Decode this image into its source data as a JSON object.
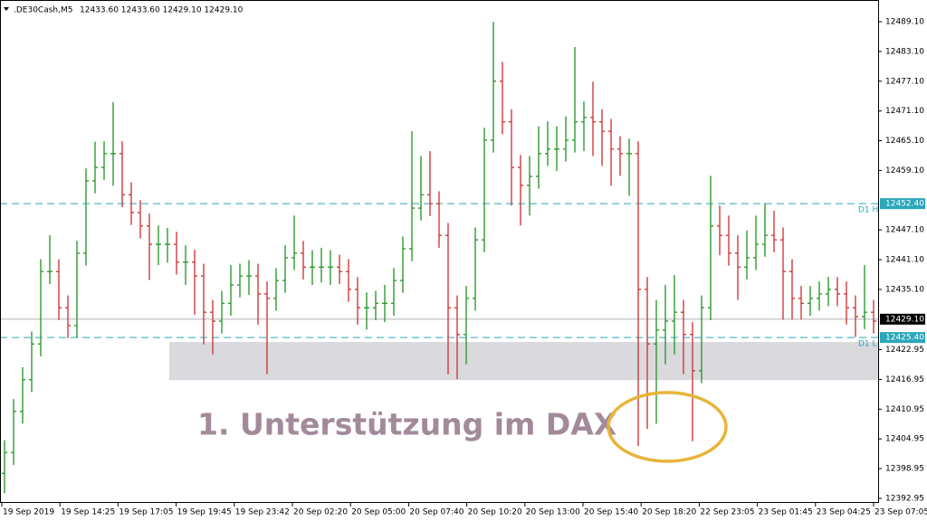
{
  "chart_data": {
    "type": "ohlc",
    "header": {
      "symbol": ".DE30Cash,M5",
      "quote": "12433.60 12433.60 12429.10 12429.10"
    },
    "annotation": "1. Unterstützung im DAX",
    "up_color": "#2f9a2f",
    "down_color": "#d03a3a",
    "ylim": [
      12392.95,
      12489.1
    ],
    "yticks": [
      {
        "value": 12489.1,
        "label": "12489.10"
      },
      {
        "value": 12483.1,
        "label": "12483.10"
      },
      {
        "value": 12477.1,
        "label": "12477.10"
      },
      {
        "value": 12471.1,
        "label": "12471.10"
      },
      {
        "value": 12465.1,
        "label": "12465.10"
      },
      {
        "value": 12459.1,
        "label": "12459.10"
      },
      {
        "value": 12447.1,
        "label": "12447.10"
      },
      {
        "value": 12441.1,
        "label": "12441.10"
      },
      {
        "value": 12435.1,
        "label": "12435.10"
      },
      {
        "value": 12422.95,
        "label": "12422.95"
      },
      {
        "value": 12416.95,
        "label": "12416.95"
      },
      {
        "value": 12410.95,
        "label": "12410.95"
      },
      {
        "value": 12404.95,
        "label": "12404.95"
      },
      {
        "value": 12398.95,
        "label": "12398.95"
      },
      {
        "value": 12392.95,
        "label": "12392.95"
      }
    ],
    "x_labels": [
      "19 Sep 2019",
      "19 Sep 14:25",
      "19 Sep 17:05",
      "19 Sep 19:45",
      "19 Sep 23:42",
      "20 Sep 02:20",
      "20 Sep 05:00",
      "20 Sep 07:40",
      "20 Sep 10:20",
      "20 Sep 13:00",
      "20 Sep 15:40",
      "20 Sep 18:20",
      "22 Sep 23:05",
      "23 Sep 01:45",
      "23 Sep 04:25",
      "23 Sep 07:05"
    ],
    "zone": {
      "from": 12416.8,
      "to": 12424.5,
      "color": "#d9d9de"
    },
    "levels": [
      {
        "name": "D1 H",
        "value": 12452.4,
        "label": "12452.40",
        "color": "#2aa7b8"
      },
      {
        "name": "D1 L",
        "value": 12425.4,
        "label": "12425.40",
        "color": "#2aa7b8"
      }
    ],
    "current": {
      "value": 12429.1,
      "label": "12429.10",
      "color": "#b0b0b0"
    },
    "ohlc": [
      [
        12398.0,
        12404.7,
        12394.0,
        12402.2
      ],
      [
        12402.2,
        12413.0,
        12399.7,
        12410.5
      ],
      [
        12410.5,
        12419.4,
        12408.0,
        12416.9
      ],
      [
        12416.9,
        12426.6,
        12414.4,
        12424.1
      ],
      [
        12424.1,
        12441.2,
        12421.6,
        12438.7
      ],
      [
        12438.7,
        12446.0,
        12436.2,
        12438.7
      ],
      [
        12438.7,
        12441.2,
        12428.9,
        12431.4
      ],
      [
        12431.4,
        12433.9,
        12425.3,
        12427.8
      ],
      [
        12427.8,
        12444.9,
        12425.3,
        12442.4
      ],
      [
        12442.4,
        12459.5,
        12439.9,
        12457.0
      ],
      [
        12457.0,
        12464.9,
        12454.5,
        12459.7
      ],
      [
        12459.7,
        12465.0,
        12457.2,
        12462.5
      ],
      [
        12462.5,
        12472.9,
        12456.0,
        12462.5
      ],
      [
        12462.5,
        12465.0,
        12451.7,
        12454.2
      ],
      [
        12454.2,
        12456.7,
        12448.1,
        12450.6
      ],
      [
        12450.6,
        12453.1,
        12445.4,
        12447.9
      ],
      [
        12447.9,
        12450.4,
        12437.0,
        12444.2
      ],
      [
        12444.2,
        12448.0,
        12440.0,
        12444.2
      ],
      [
        12444.2,
        12447.5,
        12440.5,
        12444.2
      ],
      [
        12444.2,
        12446.7,
        12438.1,
        12440.6
      ],
      [
        12440.6,
        12444.0,
        12436.0,
        12440.6
      ],
      [
        12440.6,
        12443.1,
        12430.0,
        12437.8
      ],
      [
        12437.8,
        12440.3,
        12424.0,
        12430.5
      ],
      [
        12430.5,
        12433.0,
        12422.0,
        12428.7
      ],
      [
        12428.7,
        12434.8,
        12426.2,
        12432.3
      ],
      [
        12432.3,
        12440.0,
        12429.8,
        12436.0
      ],
      [
        12436.0,
        12440.3,
        12433.5,
        12437.8
      ],
      [
        12437.8,
        12441.0,
        12434.0,
        12437.8
      ],
      [
        12437.8,
        12440.3,
        12428.0,
        12434.2
      ],
      [
        12434.2,
        12436.7,
        12418.0,
        12433.3
      ],
      [
        12433.3,
        12439.4,
        12430.8,
        12436.9
      ],
      [
        12436.9,
        12444.0,
        12434.4,
        12441.5
      ],
      [
        12441.5,
        12450.0,
        12439.0,
        12442.4
      ],
      [
        12442.4,
        12444.9,
        12437.1,
        12439.6
      ],
      [
        12439.6,
        12443.0,
        12436.0,
        12439.6
      ],
      [
        12439.6,
        12443.5,
        12436.5,
        12439.6
      ],
      [
        12439.6,
        12443.0,
        12436.0,
        12439.6
      ],
      [
        12439.6,
        12442.1,
        12436.2,
        12438.7
      ],
      [
        12438.7,
        12441.2,
        12432.6,
        12435.1
      ],
      [
        12435.1,
        12437.6,
        12428.0,
        12431.4
      ],
      [
        12431.4,
        12434.5,
        12427.0,
        12431.4
      ],
      [
        12431.4,
        12434.8,
        12428.9,
        12432.3
      ],
      [
        12432.3,
        12436.0,
        12428.5,
        12432.3
      ],
      [
        12432.3,
        12439.4,
        12429.8,
        12436.9
      ],
      [
        12436.9,
        12445.8,
        12434.4,
        12443.3
      ],
      [
        12443.3,
        12467.0,
        12440.8,
        12451.5
      ],
      [
        12451.5,
        12462.0,
        12449.0,
        12454.2
      ],
      [
        12454.2,
        12463.0,
        12449.9,
        12452.4
      ],
      [
        12452.4,
        12454.9,
        12443.5,
        12446.0
      ],
      [
        12446.0,
        12448.5,
        12418.0,
        12431.4
      ],
      [
        12431.4,
        12433.9,
        12417.0,
        12426.0
      ],
      [
        12426.0,
        12435.8,
        12420.0,
        12433.3
      ],
      [
        12433.3,
        12447.6,
        12430.8,
        12445.1
      ],
      [
        12445.1,
        12467.7,
        12442.6,
        12465.2
      ],
      [
        12465.2,
        12489.1,
        12462.7,
        12477.1
      ],
      [
        12477.1,
        12481.0,
        12466.4,
        12468.9
      ],
      [
        12468.9,
        12471.4,
        12452.0,
        12459.7
      ],
      [
        12459.7,
        12462.2,
        12448.0,
        12456.1
      ],
      [
        12456.1,
        12462.0,
        12450.0,
        12457.9
      ],
      [
        12457.9,
        12468.0,
        12455.4,
        12462.5
      ],
      [
        12462.5,
        12469.0,
        12460.0,
        12463.4
      ],
      [
        12463.4,
        12468.0,
        12459.0,
        12463.4
      ],
      [
        12463.4,
        12470.0,
        12460.9,
        12465.2
      ],
      [
        12465.2,
        12484.0,
        12462.7,
        12468.9
      ],
      [
        12468.9,
        12473.0,
        12463.0,
        12469.8
      ],
      [
        12469.8,
        12477.0,
        12462.0,
        12468.9
      ],
      [
        12468.9,
        12471.4,
        12460.0,
        12467.0
      ],
      [
        12467.0,
        12469.5,
        12456.0,
        12463.4
      ],
      [
        12463.4,
        12466.0,
        12458.0,
        12462.5
      ],
      [
        12462.5,
        12465.5,
        12454.0,
        12462.5
      ],
      [
        12462.5,
        12465.0,
        12403.5,
        12435.1
      ],
      [
        12435.1,
        12437.6,
        12407.0,
        12424.1
      ],
      [
        12424.1,
        12433.0,
        12408.0,
        12426.9
      ],
      [
        12426.9,
        12436.0,
        12420.0,
        12428.7
      ],
      [
        12428.7,
        12438.0,
        12422.0,
        12430.5
      ],
      [
        12430.5,
        12433.0,
        12418.0,
        12426.0
      ],
      [
        12426.0,
        12428.5,
        12404.5,
        12418.7
      ],
      [
        12418.7,
        12433.9,
        12416.2,
        12431.4
      ],
      [
        12431.4,
        12458.0,
        12428.9,
        12447.9
      ],
      [
        12447.9,
        12452.0,
        12442.0,
        12446.0
      ],
      [
        12446.0,
        12450.0,
        12439.9,
        12442.4
      ],
      [
        12442.4,
        12446.0,
        12433.0,
        12439.6
      ],
      [
        12439.6,
        12447.0,
        12437.1,
        12441.5
      ],
      [
        12441.5,
        12450.0,
        12439.0,
        12444.2
      ],
      [
        12444.2,
        12452.5,
        12441.7,
        12446.0
      ],
      [
        12446.0,
        12451.0,
        12442.6,
        12445.1
      ],
      [
        12445.1,
        12447.6,
        12429.0,
        12438.7
      ],
      [
        12438.7,
        12441.2,
        12429.0,
        12433.3
      ],
      [
        12433.3,
        12435.8,
        12429.0,
        12432.3
      ],
      [
        12432.3,
        12435.8,
        12429.8,
        12433.3
      ],
      [
        12433.3,
        12436.7,
        12430.8,
        12434.2
      ],
      [
        12434.2,
        12437.6,
        12431.7,
        12435.1
      ],
      [
        12435.1,
        12437.6,
        12431.7,
        12434.2
      ],
      [
        12434.2,
        12436.7,
        12428.0,
        12431.4
      ],
      [
        12431.4,
        12433.9,
        12425.5,
        12429.6
      ],
      [
        12429.6,
        12440.0,
        12427.1,
        12430.5
      ],
      [
        12430.5,
        12433.0,
        12426.2,
        12428.7
      ]
    ]
  }
}
